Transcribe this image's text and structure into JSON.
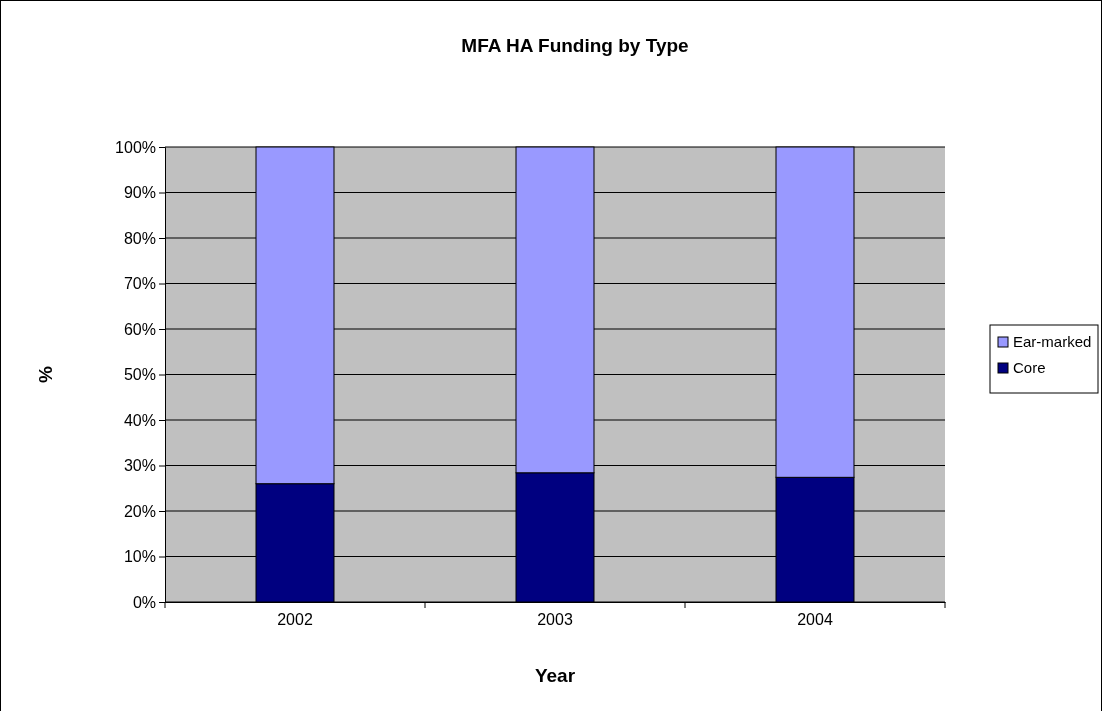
{
  "chart_data": {
    "type": "bar",
    "title": "MFA HA Funding by Type",
    "xlabel": "Year",
    "ylabel": "%",
    "categories": [
      "2002",
      "2003",
      "2004"
    ],
    "stacked": true,
    "series": [
      {
        "name": "Core",
        "color": "#000080",
        "values": [
          26,
          28.4,
          27.4
        ]
      },
      {
        "name": "Ear-marked",
        "color": "#9999ff",
        "values": [
          74,
          71.6,
          72.6
        ]
      }
    ],
    "ylim": [
      0,
      100
    ],
    "yticks": [
      {
        "value": 0,
        "label": "0%"
      },
      {
        "value": 10,
        "label": "10%"
      },
      {
        "value": 20,
        "label": "20%"
      },
      {
        "value": 30,
        "label": "30%"
      },
      {
        "value": 40,
        "label": "40%"
      },
      {
        "value": 50,
        "label": "50%"
      },
      {
        "value": 60,
        "label": "60%"
      },
      {
        "value": 70,
        "label": "70%"
      },
      {
        "value": 80,
        "label": "80%"
      },
      {
        "value": 90,
        "label": "90%"
      },
      {
        "value": 100,
        "label": "100%"
      }
    ],
    "grid": "y",
    "legend": "right"
  }
}
